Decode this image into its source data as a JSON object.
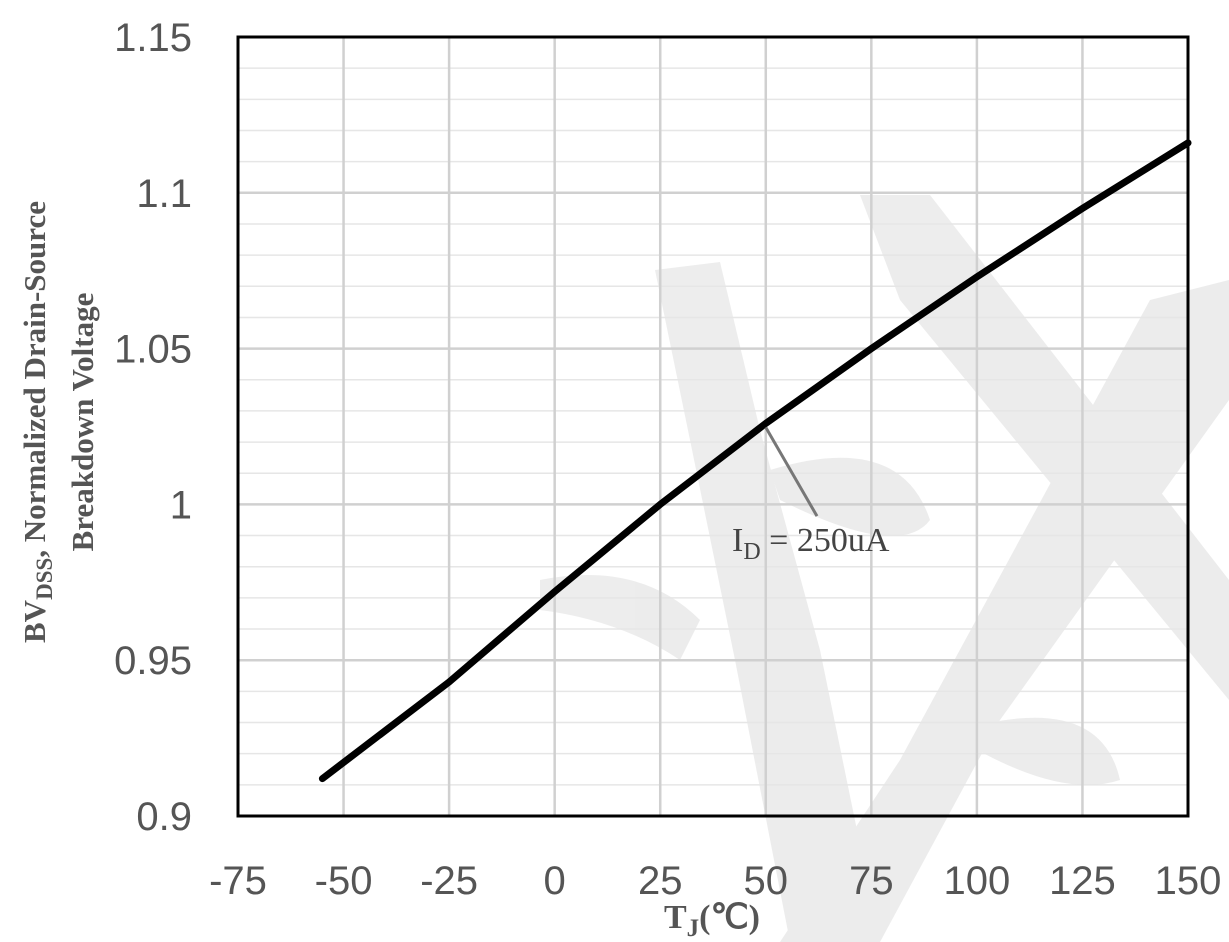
{
  "chart_data": {
    "type": "line",
    "xlabel": {
      "main": "T",
      "sub": "J",
      "unit": "(℃)"
    },
    "ylabel": {
      "line1_prefix": "BV",
      "line1_sub": "DSS",
      "line1_suffix": ", Normalized Drain-Source",
      "line2": "Breakdown Voltage"
    },
    "xlim": [
      -75,
      150
    ],
    "ylim": [
      0.9,
      1.15
    ],
    "x_ticks": [
      -75,
      -50,
      -25,
      0,
      25,
      50,
      75,
      100,
      125,
      150
    ],
    "x_tick_labels": [
      "-75",
      "-50",
      "-25",
      "0",
      "25",
      "50",
      "75",
      "100",
      "125",
      "150"
    ],
    "y_ticks": [
      0.9,
      0.95,
      1.0,
      1.05,
      1.1,
      1.15
    ],
    "y_tick_labels": [
      "0.9",
      "0.95",
      "1",
      "1.05",
      "1.1",
      "1.15"
    ],
    "grid": true,
    "minor_y_step": 0.01,
    "series": [
      {
        "color": "#000000",
        "x": [
          -55,
          -25,
          0,
          25,
          50,
          75,
          100,
          125,
          150
        ],
        "y": [
          0.912,
          0.943,
          0.972,
          1.0,
          1.026,
          1.05,
          1.073,
          1.095,
          1.116
        ]
      }
    ],
    "annotation": {
      "main": "I",
      "sub": "D",
      "rest": " = 250uA",
      "point": [
        50,
        1.026
      ],
      "label_at": [
        42,
        0.985
      ]
    }
  }
}
